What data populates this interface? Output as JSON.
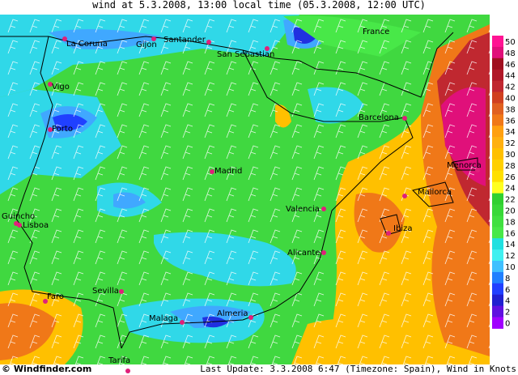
{
  "header": {
    "title": "wind at 5.3.2008, 13:00 local time (05.3.2008, 12:00 UTC)"
  },
  "cities": [
    "La Coruna",
    "Gijon",
    "Santander",
    "San Sebastian",
    "France",
    "Vigo",
    "Porto",
    "Barcelona",
    "Madrid",
    "Menorca",
    "Mallorca",
    "Valencia",
    "Ibiza",
    "Guincho",
    "Lisboa",
    "Alicante",
    "Faro",
    "Sevilla",
    "Malaga",
    "Almeria",
    "Tarifa"
  ],
  "legend": {
    "ticks": [
      50,
      48,
      46,
      44,
      42,
      40,
      38,
      36,
      34,
      32,
      30,
      28,
      26,
      24,
      22,
      20,
      18,
      16,
      14,
      12,
      10,
      8,
      6,
      4,
      2,
      0
    ],
    "colors": [
      "#ff1493",
      "#e0107a",
      "#a01020",
      "#b01828",
      "#c02830",
      "#d04020",
      "#e06020",
      "#f07818",
      "#ffa010",
      "#ffb010",
      "#ffc000",
      "#ffd000",
      "#ffe000",
      "#ffff20",
      "#30d030",
      "#38d838",
      "#40e040",
      "#48e848",
      "#20e0e0",
      "#40f0f0",
      "#40c0ff",
      "#2080ff",
      "#2040ff",
      "#2020d0",
      "#6010e0",
      "#a000ff"
    ]
  },
  "footer": {
    "brand": "© Windfinder.com",
    "update": "Last Update: 3.3.2008 6:47 (Timezone: Spain), Wind in Knots"
  }
}
